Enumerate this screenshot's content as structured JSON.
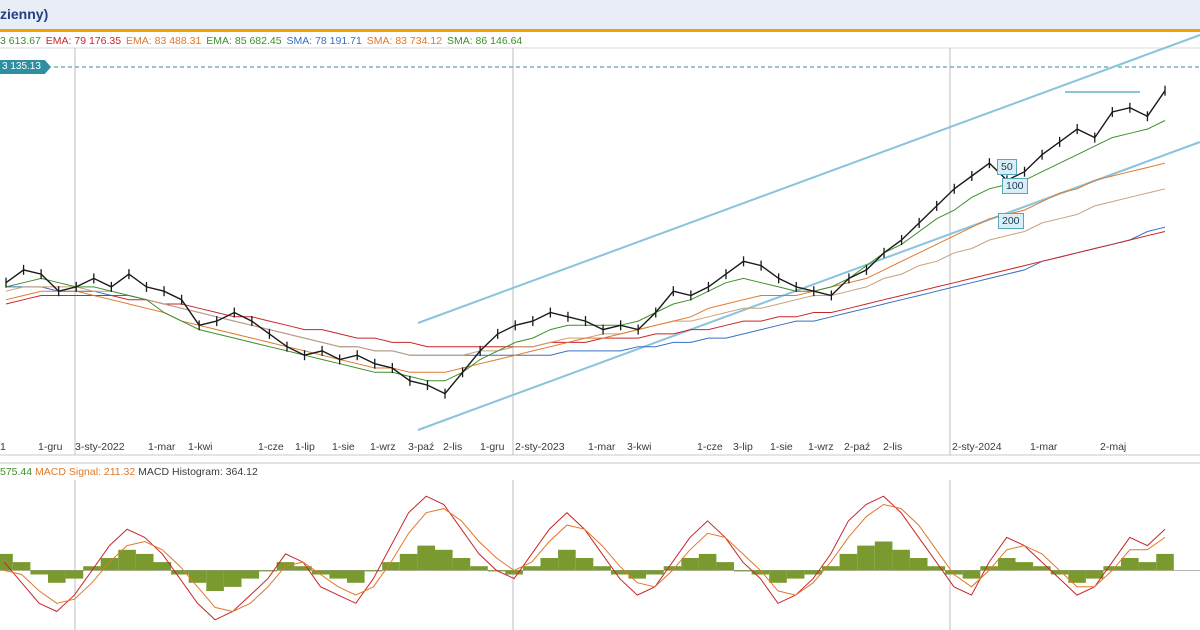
{
  "title": "zienny)",
  "price_legend": {
    "ema1": "3 613.67",
    "ema2_label": "EMA: 79 176.35",
    "ema3_label": "EMA: 83 488.31",
    "ema4_label": "EMA: 85 682.45",
    "sma1_label": "SMA: 78 191.71",
    "sma2_label": "SMA: 83 734.12",
    "sma3_label": "SMA: 86 146.64"
  },
  "price_tag": "3 135.13",
  "ma_labels": [
    "50",
    "100",
    "200"
  ],
  "macd_legend": {
    "macd_value": "575.44",
    "signal_label": "MACD Signal: 211.32",
    "histogram_label": "MACD Histogram: 364.12"
  },
  "colors": {
    "accent_bar": "#f2a300",
    "channel": "#89c4dc",
    "price": "#1a1a1a",
    "ma_green": "#3d8f2c",
    "ma_orange": "#e0782a",
    "ma_tan": "#c9a07a",
    "ma_red": "#c8262a",
    "ma_blue": "#3a6fc4",
    "histogram": "#7a9a30",
    "macd_line": "#c8262a",
    "signal_line": "#e0782a"
  },
  "chart_data": [
    {
      "type": "line",
      "x_tick_labels": [
        "1",
        "1-gru",
        "3-sty-2022",
        "1-mar",
        "1-kwi",
        "1-cze",
        "1-lip",
        "1-sie",
        "1-wrz",
        "3-paź",
        "2-lis",
        "1-gru",
        "2-sty-2023",
        "1-mar",
        "3-kwi",
        "1-cze",
        "3-lip",
        "1-sie",
        "1-wrz",
        "2-paź",
        "2-lis",
        "2-sty-2024",
        "1-mar",
        "2-maj"
      ],
      "series": [
        {
          "values": [
            105,
            108,
            107,
            103,
            104,
            106,
            104,
            107,
            104,
            103,
            101,
            95,
            96,
            98,
            96,
            93,
            90,
            88,
            89,
            87,
            88,
            86,
            85,
            82,
            81,
            79,
            84,
            89,
            93,
            95,
            96,
            98,
            97,
            96,
            94,
            95,
            94,
            98,
            103,
            102,
            104,
            107,
            110,
            109,
            106,
            104,
            103,
            102,
            106,
            108,
            112,
            115,
            119,
            123,
            127,
            130,
            133,
            129,
            131,
            135,
            138,
            141,
            139,
            145,
            146,
            144,
            150
          ]
        },
        {
          "values": [
            104,
            105,
            106,
            105,
            104,
            104,
            103,
            102,
            101,
            98,
            96,
            94,
            93,
            92,
            91,
            90,
            89,
            88,
            87,
            86,
            85,
            84,
            84,
            83,
            82,
            82,
            84,
            87,
            89,
            91,
            92,
            94,
            95,
            95,
            95,
            95,
            96,
            98,
            100,
            101,
            103,
            105,
            106,
            105,
            104,
            103,
            103,
            104,
            106,
            109,
            112,
            114,
            117,
            120,
            122,
            125,
            127,
            128,
            129,
            131,
            133,
            135,
            137,
            139,
            140,
            141,
            143
          ]
        },
        {
          "values": [
            101,
            102,
            103,
            103,
            103,
            102,
            101,
            100,
            99,
            98,
            96,
            95,
            94,
            93,
            92,
            91,
            90,
            89,
            88,
            87,
            86,
            85,
            85,
            84,
            84,
            84,
            85,
            86,
            87,
            88,
            89,
            90,
            91,
            92,
            92,
            93,
            94,
            95,
            96,
            97,
            99,
            100,
            101,
            102,
            102,
            102,
            103,
            104,
            105,
            106,
            108,
            110,
            112,
            114,
            116,
            118,
            120,
            121,
            122,
            124,
            126,
            127,
            129,
            130,
            131,
            132,
            133
          ]
        },
        {
          "values": [
            103,
            104,
            104,
            104,
            104,
            103,
            103,
            102,
            101,
            100,
            99,
            98,
            97,
            96,
            95,
            94,
            93,
            92,
            91,
            90,
            90,
            89,
            89,
            88,
            88,
            88,
            88,
            89,
            89,
            90,
            90,
            91,
            92,
            92,
            93,
            93,
            94,
            95,
            96,
            96,
            97,
            98,
            99,
            99,
            100,
            101,
            102,
            102,
            103,
            104,
            106,
            107,
            109,
            110,
            112,
            113,
            115,
            116,
            117,
            119,
            120,
            121,
            123,
            124,
            125,
            126,
            127
          ]
        },
        {
          "values": [
            100,
            101,
            102,
            102,
            102,
            102,
            102,
            101,
            101,
            100,
            100,
            99,
            98,
            97,
            97,
            96,
            95,
            94,
            94,
            93,
            92,
            92,
            91,
            91,
            90,
            90,
            90,
            90,
            90,
            90,
            90,
            91,
            91,
            91,
            92,
            92,
            92,
            93,
            93,
            94,
            94,
            95,
            96,
            96,
            97,
            97,
            98,
            98,
            99,
            100,
            101,
            102,
            103,
            104,
            105,
            106,
            107,
            108,
            109,
            110,
            111,
            112,
            113,
            114,
            115,
            116,
            117
          ]
        },
        {
          "values": [
            104,
            104,
            104,
            103,
            103,
            103,
            102,
            102,
            101,
            100,
            99,
            98,
            97,
            96,
            95,
            94,
            93,
            92,
            91,
            90,
            90,
            89,
            89,
            88,
            88,
            88,
            88,
            88,
            88,
            88,
            88,
            88,
            89,
            89,
            89,
            89,
            90,
            90,
            91,
            91,
            92,
            92,
            93,
            94,
            95,
            96,
            96,
            97,
            98,
            99,
            100,
            101,
            102,
            103,
            104,
            105,
            106,
            107,
            108,
            110,
            111,
            112,
            113,
            114,
            115,
            117,
            118
          ]
        }
      ]
    },
    {
      "type": "bar",
      "series": [
        {
          "values": [
            4,
            2,
            -1,
            -3,
            -2,
            1,
            3,
            5,
            4,
            2,
            -1,
            -3,
            -5,
            -4,
            -2,
            0,
            2,
            1,
            -1,
            -2,
            -3,
            0,
            2,
            4,
            6,
            5,
            3,
            1,
            0,
            -1,
            1,
            3,
            5,
            3,
            1,
            -1,
            -2,
            -1,
            1,
            3,
            4,
            2,
            0,
            -1,
            -3,
            -2,
            -1,
            1,
            4,
            6,
            7,
            5,
            3,
            1,
            -1,
            -2,
            1,
            3,
            2,
            1,
            -1,
            -3,
            -2,
            1,
            3,
            2,
            4
          ]
        },
        {
          "values": [
            2,
            -3,
            -8,
            -10,
            -6,
            0,
            6,
            10,
            8,
            4,
            -2,
            -8,
            -12,
            -10,
            -6,
            -2,
            4,
            2,
            -4,
            -6,
            -8,
            -2,
            6,
            14,
            18,
            16,
            10,
            4,
            0,
            -2,
            4,
            10,
            14,
            10,
            4,
            -2,
            -6,
            -4,
            2,
            8,
            12,
            8,
            2,
            -2,
            -8,
            -6,
            -2,
            4,
            12,
            16,
            18,
            14,
            8,
            2,
            -4,
            -6,
            2,
            8,
            6,
            2,
            -2,
            -6,
            -4,
            2,
            8,
            6,
            10
          ]
        },
        {
          "values": [
            0,
            -1,
            -5,
            -8,
            -7,
            -3,
            2,
            6,
            7,
            5,
            1,
            -4,
            -9,
            -10,
            -8,
            -4,
            1,
            2,
            -1,
            -4,
            -6,
            -4,
            2,
            9,
            14,
            15,
            12,
            7,
            3,
            0,
            2,
            7,
            11,
            10,
            6,
            1,
            -3,
            -4,
            0,
            5,
            9,
            8,
            4,
            0,
            -5,
            -6,
            -3,
            2,
            8,
            13,
            16,
            15,
            11,
            5,
            -1,
            -4,
            0,
            5,
            6,
            4,
            0,
            -4,
            -4,
            0,
            5,
            5,
            8
          ]
        }
      ]
    }
  ]
}
